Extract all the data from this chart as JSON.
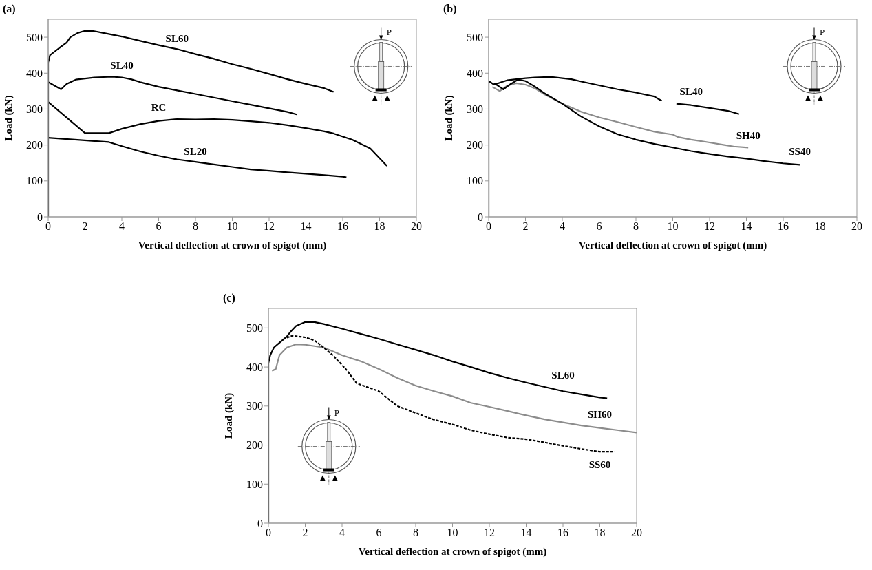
{
  "chart_data": [
    {
      "type": "line",
      "title": "(a)",
      "xlabel": "Vertical deflection at crown of spigot (mm)",
      "ylabel": "Load (kN)",
      "xlim": [
        0,
        20
      ],
      "ylim": [
        0,
        550
      ],
      "xticks": [
        0,
        2,
        4,
        6,
        8,
        10,
        12,
        14,
        16,
        18,
        20
      ],
      "yticks": [
        0,
        100,
        200,
        300,
        400,
        500
      ],
      "series": [
        {
          "name": "SL60",
          "color": "#000000",
          "line_style": "solid",
          "x": [
            0,
            0,
            0.1,
            0.3,
            0.6,
            1,
            1.2,
            1.6,
            2,
            2.5,
            3,
            4,
            5,
            6,
            7,
            8,
            9,
            10,
            11,
            12,
            13,
            14,
            15,
            15.5
          ],
          "values": [
            0,
            430,
            450,
            458,
            470,
            485,
            500,
            512,
            518,
            517,
            512,
            502,
            490,
            478,
            467,
            453,
            440,
            425,
            412,
            398,
            383,
            370,
            358,
            348
          ]
        },
        {
          "name": "SL40",
          "color": "#000000",
          "line_style": "solid",
          "x": [
            0,
            0.7,
            1,
            1.5,
            2,
            2.5,
            3,
            3.5,
            4,
            4.5,
            5,
            6,
            7,
            8,
            9,
            10,
            11,
            12,
            13,
            13.5
          ],
          "values": [
            375,
            355,
            370,
            382,
            385,
            388,
            389,
            390,
            388,
            383,
            375,
            362,
            352,
            342,
            332,
            322,
            312,
            302,
            292,
            285
          ]
        },
        {
          "name": "RC",
          "color": "#000000",
          "line_style": "solid",
          "x": [
            0,
            2,
            3.3,
            4,
            5,
            6,
            7,
            8,
            9,
            10,
            11,
            12,
            13,
            14,
            15,
            15.5,
            16.5,
            17.5,
            18.4
          ],
          "values": [
            320,
            233,
            233,
            245,
            258,
            267,
            272,
            271,
            272,
            270,
            266,
            262,
            255,
            247,
            238,
            232,
            215,
            190,
            142
          ]
        },
        {
          "name": "SL20",
          "color": "#000000",
          "line_style": "solid",
          "x": [
            0,
            3.3,
            4,
            5,
            6,
            7,
            8,
            9,
            10,
            11,
            12,
            13,
            14,
            15,
            16,
            16.2
          ],
          "values": [
            220,
            208,
            197,
            182,
            170,
            160,
            153,
            146,
            139,
            132,
            128,
            124,
            120,
            116,
            112,
            110
          ]
        }
      ],
      "annotations": [
        "P"
      ]
    },
    {
      "type": "line",
      "title": "(b)",
      "xlabel": "Vertical deflection at crown of spigot (mm)",
      "ylabel": "Load (kN)",
      "xlim": [
        0,
        20
      ],
      "ylim": [
        0,
        550
      ],
      "xticks": [
        0,
        2,
        4,
        6,
        8,
        10,
        12,
        14,
        16,
        18,
        20
      ],
      "yticks": [
        0,
        100,
        200,
        300,
        400,
        500
      ],
      "series": [
        {
          "name": "SL40",
          "color": "#000000",
          "line_style": "solid",
          "x": [
            0,
            0,
            0.3,
            0.7,
            1,
            1.5,
            2,
            2.5,
            3,
            3.5,
            4,
            4.5,
            5,
            6,
            7,
            8,
            9,
            9.4,
            9.8,
            10.2,
            11,
            12,
            13,
            13.6
          ],
          "values": [
            0,
            378,
            368,
            375,
            380,
            383,
            386,
            388,
            389,
            389,
            386,
            383,
            377,
            366,
            355,
            346,
            335,
            323,
            null,
            315,
            311,
            303,
            295,
            286
          ]
        },
        {
          "name": "SH40",
          "color": "#8c8c8c",
          "line_style": "solid",
          "x": [
            0.2,
            0.6,
            1,
            1.5,
            2,
            2.5,
            3,
            4,
            5,
            6,
            7,
            8,
            9,
            10,
            10.3,
            11,
            12,
            12.8,
            13.3,
            14.1
          ],
          "values": [
            362,
            350,
            365,
            372,
            368,
            358,
            342,
            315,
            293,
            277,
            264,
            250,
            237,
            229,
            222,
            215,
            207,
            200,
            196,
            193
          ]
        },
        {
          "name": "SS40",
          "color": "#000000",
          "line_style": "solid",
          "x": [
            0.3,
            0.8,
            1.2,
            1.6,
            2,
            2.5,
            3,
            4,
            5,
            6,
            7,
            8,
            9,
            10,
            11,
            12,
            13,
            14,
            15,
            16,
            16.9
          ],
          "values": [
            372,
            355,
            370,
            382,
            378,
            363,
            345,
            315,
            280,
            252,
            230,
            215,
            203,
            193,
            183,
            175,
            168,
            162,
            155,
            149,
            145
          ]
        }
      ],
      "annotations": [
        "P"
      ]
    },
    {
      "type": "line",
      "title": "(c)",
      "xlabel": "Vertical deflection at crown of spigot (mm)",
      "ylabel": "Load (kN)",
      "xlim": [
        0,
        20
      ],
      "ylim": [
        0,
        550
      ],
      "xticks": [
        0,
        2,
        4,
        6,
        8,
        10,
        12,
        14,
        16,
        18,
        20
      ],
      "yticks": [
        0,
        100,
        200,
        300,
        400,
        500
      ],
      "series": [
        {
          "name": "SL60",
          "color": "#000000",
          "line_style": "solid",
          "x": [
            0,
            0,
            0.1,
            0.3,
            0.6,
            1,
            1.2,
            1.5,
            2,
            2.5,
            3,
            4,
            5,
            6,
            7,
            8,
            9,
            10,
            11,
            12,
            13,
            14,
            15,
            16,
            17,
            18,
            18.4
          ],
          "values": [
            0,
            410,
            430,
            450,
            462,
            478,
            490,
            505,
            515,
            515,
            510,
            498,
            485,
            472,
            458,
            444,
            430,
            414,
            400,
            385,
            372,
            360,
            349,
            338,
            330,
            322,
            320
          ]
        },
        {
          "name": "SH60",
          "color": "#8c8c8c",
          "line_style": "solid",
          "x": [
            0.2,
            0.4,
            0.6,
            1,
            1.5,
            2,
            3,
            4,
            5,
            6,
            7,
            8,
            9,
            10,
            11,
            12,
            13,
            14,
            15,
            16,
            17,
            18,
            19,
            20
          ],
          "values": [
            390,
            395,
            430,
            450,
            458,
            457,
            450,
            430,
            415,
            395,
            372,
            352,
            338,
            325,
            308,
            298,
            287,
            276,
            266,
            258,
            250,
            244,
            238,
            232
          ]
        },
        {
          "name": "SS60",
          "color": "#000000",
          "line_style": "dashed",
          "x": [
            1,
            1.3,
            2,
            2.5,
            3,
            3.5,
            4.2,
            4.8,
            6,
            7,
            8,
            9,
            10,
            11,
            12,
            13,
            14,
            15,
            16,
            17,
            18,
            18.8
          ],
          "values": [
            475,
            480,
            476,
            468,
            450,
            430,
            395,
            358,
            338,
            300,
            282,
            265,
            253,
            238,
            228,
            219,
            215,
            207,
            198,
            190,
            183,
            183
          ]
        }
      ],
      "annotations": [
        "P"
      ]
    }
  ]
}
